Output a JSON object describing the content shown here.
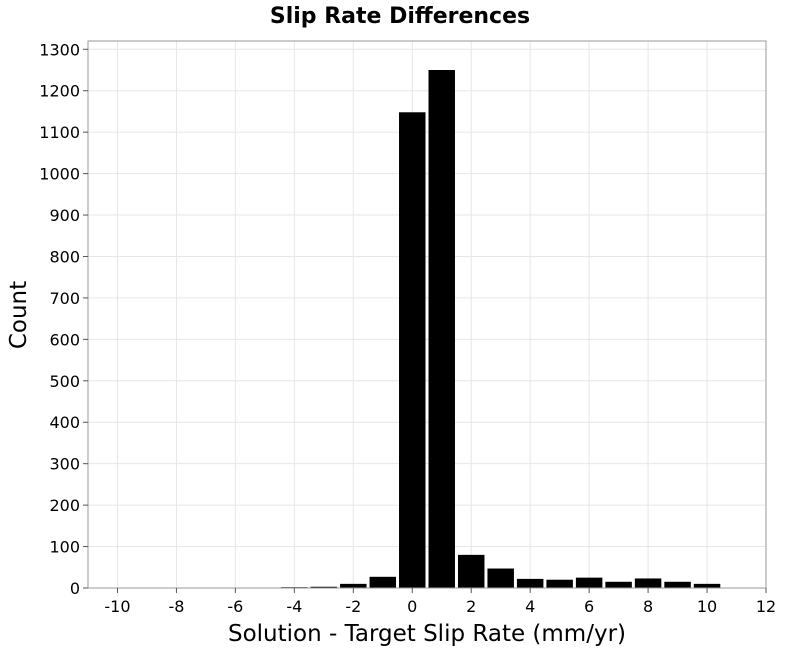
{
  "chart_data": {
    "type": "bar",
    "title": "Slip Rate Differences",
    "xlabel": "Solution - Target Slip Rate (mm/yr)",
    "ylabel": "Count",
    "xlim": [
      -11,
      12
    ],
    "ylim": [
      0,
      1320
    ],
    "grid": true,
    "bar_color": "#000000",
    "bin_width": 1,
    "xticks": [
      -10,
      -8,
      -6,
      -4,
      -2,
      0,
      2,
      4,
      6,
      8,
      10,
      12
    ],
    "xtick_labels": [
      "-10",
      "-8",
      "-6",
      "-4",
      "-2",
      "0",
      "2",
      "4",
      "6",
      "8",
      "10",
      "12"
    ],
    "yticks": [
      0,
      100,
      200,
      300,
      400,
      500,
      600,
      700,
      800,
      900,
      1000,
      1100,
      1200,
      1300
    ],
    "ytick_labels": [
      "0",
      "100",
      "200",
      "300",
      "400",
      "500",
      "600",
      "700",
      "800",
      "900",
      "1000",
      "1100",
      "1200",
      "1300"
    ],
    "x": [
      -10,
      -9,
      -8,
      -7,
      -6,
      -5,
      -4,
      -3,
      -2,
      -1,
      0,
      1,
      2,
      3,
      4,
      5,
      6,
      7,
      8,
      9,
      10
    ],
    "values": [
      0,
      0,
      0,
      0,
      0,
      0,
      2,
      3,
      10,
      27,
      1148,
      1250,
      80,
      47,
      22,
      20,
      25,
      15,
      23,
      15,
      10
    ]
  }
}
